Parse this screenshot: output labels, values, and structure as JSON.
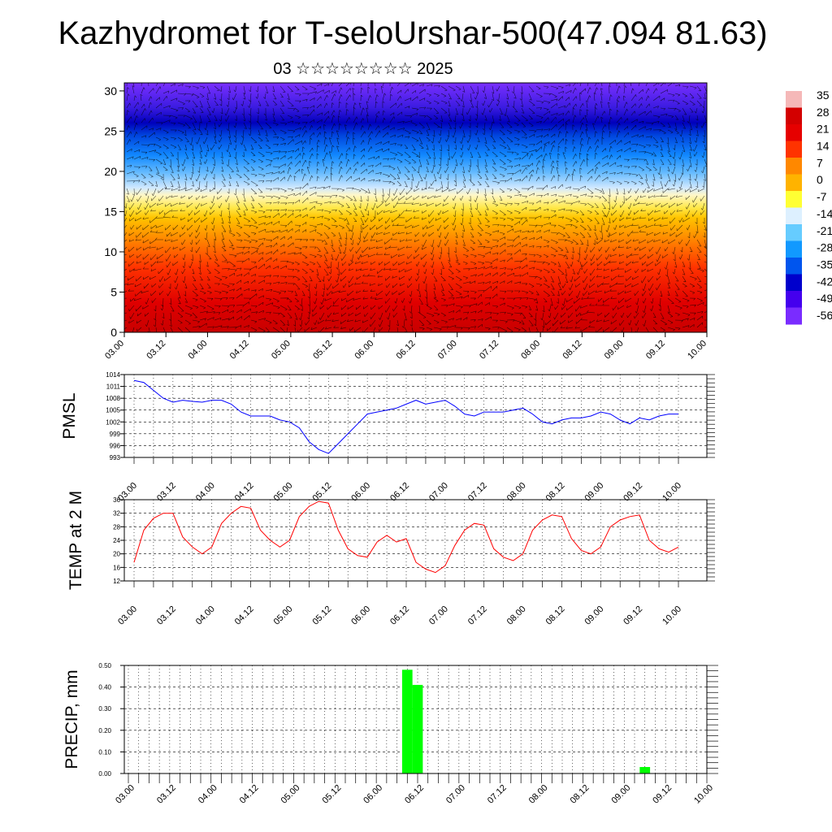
{
  "header": {
    "title": "Kazhydromet for T-seloUrshar-500(47.094 81.63)",
    "subtitle": "03 ☆☆☆☆☆☆☆☆ 2025"
  },
  "colors": {
    "pmsl_line": "#0000ff",
    "temp_line": "#ff0000",
    "precip_bar": "#00ff00"
  },
  "time_ticks": [
    "03.00",
    "03.12",
    "04.00",
    "04.12",
    "05.00",
    "05.12",
    "06.00",
    "06.12",
    "07.00",
    "07.12",
    "08.00",
    "08.12",
    "09.00",
    "09.12",
    "10.00"
  ],
  "chart_data": [
    {
      "type": "heatmap",
      "name": "cross-section",
      "y_ticks": [
        "0",
        "5",
        "10",
        "15",
        "20",
        "25",
        "30"
      ],
      "ylim": [
        0,
        31
      ],
      "colorbar": {
        "labels": [
          "35",
          "28",
          "21",
          "14",
          "7",
          "0",
          "-7",
          "-14",
          "-21",
          "-28",
          "-35",
          "-42",
          "-49",
          "-56"
        ],
        "colors": [
          "#f5b8b8",
          "#d30000",
          "#e60000",
          "#ff3300",
          "#ff8800",
          "#ffb300",
          "#ffff33",
          "#ddf0ff",
          "#66ccff",
          "#1199ff",
          "#0055ee",
          "#0000cc",
          "#4400ee",
          "#7a2cff"
        ]
      }
    },
    {
      "type": "line",
      "ylabel": "PMSL",
      "ylim": [
        993,
        1014
      ],
      "y_ticks": [
        "1014",
        "1011",
        "1008",
        "1005",
        "1002",
        "999",
        "996",
        "993"
      ],
      "x": [
        0,
        3,
        6,
        9,
        12,
        15,
        18,
        21,
        24,
        27,
        30,
        33,
        36,
        39,
        42,
        45,
        48,
        51,
        54,
        57,
        60,
        63,
        66,
        69,
        72,
        75,
        78,
        81,
        84,
        87,
        90,
        93,
        96,
        99,
        102,
        105,
        108,
        111,
        114,
        117,
        120,
        123,
        126,
        129,
        132,
        135,
        138,
        141,
        144,
        147,
        150,
        153,
        156,
        159,
        162,
        165,
        168
      ],
      "series": [
        {
          "values": [
            1012.5,
            1012,
            1010,
            1008,
            1007,
            1007.5,
            1007.2,
            1007,
            1007.5,
            1007.5,
            1006.5,
            1004.5,
            1003.5,
            1003.5,
            1003.5,
            1002.5,
            1002,
            1000.5,
            997,
            995,
            994,
            996.5,
            999,
            1001.5,
            1004,
            1004.5,
            1005,
            1005.5,
            1006.5,
            1007.5,
            1006.5,
            1007,
            1007.5,
            1006,
            1004,
            1003.5,
            1004.5,
            1004.5,
            1004.5,
            1005,
            1005.5,
            1004,
            1002,
            1001.5,
            1002.5,
            1003,
            1003,
            1003.5,
            1004.5,
            1004,
            1002.5,
            1001.5,
            1003,
            1002.5,
            1003.5,
            1004,
            1004
          ]
        }
      ]
    },
    {
      "type": "line",
      "ylabel": "TEMP at 2 M",
      "ylim": [
        12,
        36
      ],
      "y_ticks": [
        "36",
        "32",
        "28",
        "24",
        "20",
        "16",
        "12"
      ],
      "x": [
        0,
        3,
        6,
        9,
        12,
        15,
        18,
        21,
        24,
        27,
        30,
        33,
        36,
        39,
        42,
        45,
        48,
        51,
        54,
        57,
        60,
        63,
        66,
        69,
        72,
        75,
        78,
        81,
        84,
        87,
        90,
        93,
        96,
        99,
        102,
        105,
        108,
        111,
        114,
        117,
        120,
        123,
        126,
        129,
        132,
        135,
        138,
        141,
        144,
        147,
        150,
        153,
        156,
        159,
        162,
        165,
        168
      ],
      "series": [
        {
          "values": [
            17.5,
            27,
            30.5,
            32,
            32,
            25,
            22,
            20,
            22,
            29,
            32,
            34,
            33.5,
            27,
            24,
            22,
            24,
            31,
            34,
            35.5,
            35,
            27,
            21.5,
            19.5,
            19,
            23.5,
            25.5,
            23.5,
            24.5,
            17.5,
            15.5,
            14.5,
            16.5,
            22.5,
            27,
            29,
            28.5,
            21.5,
            19,
            18,
            20,
            27,
            30,
            31.5,
            31,
            24.5,
            21,
            20,
            22,
            28,
            30,
            31,
            31.5,
            24,
            21.5,
            20.5,
            22
          ]
        }
      ]
    },
    {
      "type": "bar",
      "ylabel": "PRECIP, mm",
      "ylim": [
        0,
        0.5
      ],
      "y_ticks": [
        "0.50",
        "0.40",
        "0.30",
        "0.20",
        "0.10",
        "0.00"
      ],
      "x_hours": [
        81,
        84,
        150
      ],
      "values": [
        0.48,
        0.41,
        0.03
      ]
    }
  ]
}
